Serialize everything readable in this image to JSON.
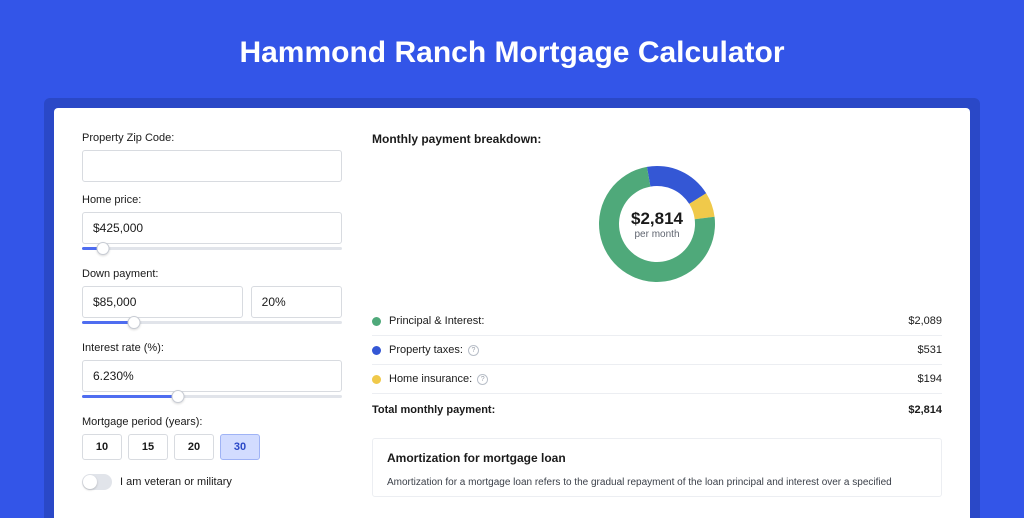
{
  "page": {
    "title": "Hammond Ranch Mortgage Calculator",
    "bg_color": "#3355e8",
    "outer_card_color": "#2a48c7",
    "card_bg": "#ffffff"
  },
  "form": {
    "zip": {
      "label": "Property Zip Code:",
      "value": ""
    },
    "home_price": {
      "label": "Home price:",
      "value": "$425,000",
      "slider_percent": 8
    },
    "down_payment": {
      "label": "Down payment:",
      "amount": "$85,000",
      "percent": "20%",
      "slider_percent": 20
    },
    "interest": {
      "label": "Interest rate (%):",
      "value": "6.230%",
      "slider_percent": 37
    },
    "period": {
      "label": "Mortgage period (years):",
      "options": [
        "10",
        "15",
        "20",
        "30"
      ],
      "selected": "30"
    },
    "veteran": {
      "label": "I am veteran or military",
      "checked": false
    },
    "slider_track_color": "#e1e4ea",
    "slider_fill_color": "#4f6df0"
  },
  "breakdown": {
    "title": "Monthly payment breakdown:",
    "donut": {
      "amount": "$2,814",
      "sub": "per month",
      "slices": [
        {
          "key": "principal_interest",
          "color": "#4fa97a",
          "percent": 74.2
        },
        {
          "key": "property_taxes",
          "color": "#3457d5",
          "percent": 18.9
        },
        {
          "key": "home_insurance",
          "color": "#f0c94a",
          "percent": 6.9
        }
      ]
    },
    "rows": [
      {
        "key": "principal_interest",
        "label": "Principal & Interest:",
        "value": "$2,089",
        "color": "#4fa97a",
        "info": false
      },
      {
        "key": "property_taxes",
        "label": "Property taxes:",
        "value": "$531",
        "color": "#3457d5",
        "info": true
      },
      {
        "key": "home_insurance",
        "label": "Home insurance:",
        "value": "$194",
        "color": "#f0c94a",
        "info": true
      }
    ],
    "total": {
      "label": "Total monthly payment:",
      "value": "$2,814"
    }
  },
  "amortization": {
    "title": "Amortization for mortgage loan",
    "text": "Amortization for a mortgage loan refers to the gradual repayment of the loan principal and interest over a specified"
  }
}
